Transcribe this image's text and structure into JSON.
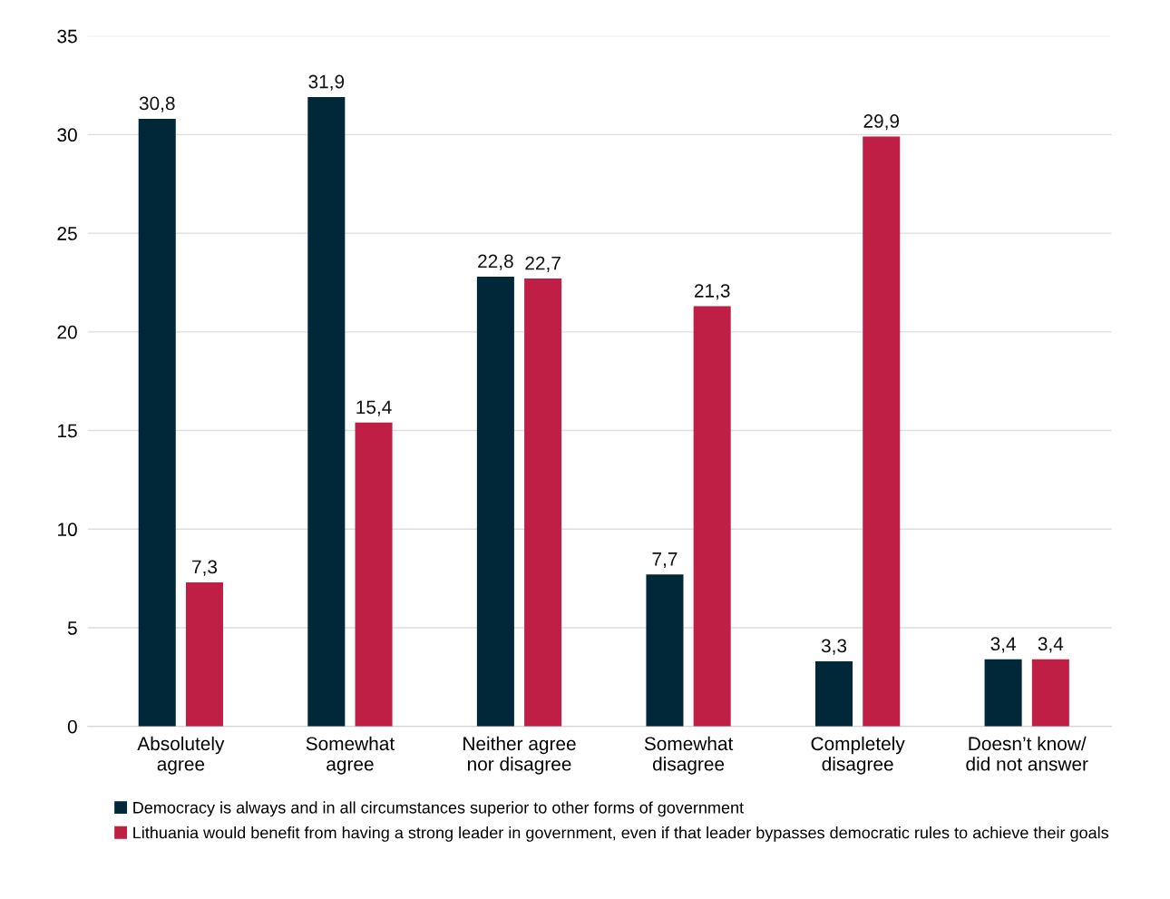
{
  "chart_data": {
    "type": "bar",
    "categories": [
      "Absolutely\nagree",
      "Somewhat\nagree",
      "Neither agree\nnor disagree",
      "Somewhat\ndisagree",
      "Completely\ndisagree",
      "Doesn’t know/\ndid not answer"
    ],
    "series": [
      {
        "name": "Democracy is always and in all circumstances superior to other forms of government",
        "color": "#012839",
        "values": [
          30.8,
          31.9,
          22.8,
          7.7,
          3.3,
          3.4
        ],
        "value_labels": [
          "30,8",
          "31,9",
          "22,8",
          "7,7",
          "3,3",
          "3,4"
        ]
      },
      {
        "name": "Lithuania would benefit from having a strong leader in government, even if that leader bypasses democratic rules to achieve their goals",
        "color": "#c01f45",
        "values": [
          7.3,
          15.4,
          22.7,
          21.3,
          29.9,
          3.4
        ],
        "value_labels": [
          "7,3",
          "15,4",
          "22,7",
          "21,3",
          "29,9",
          "3,4"
        ]
      }
    ],
    "ylim": [
      0,
      35
    ],
    "yticks": [
      0,
      5,
      10,
      15,
      20,
      25,
      30,
      35
    ],
    "grid": "y",
    "legend": "bottom"
  }
}
